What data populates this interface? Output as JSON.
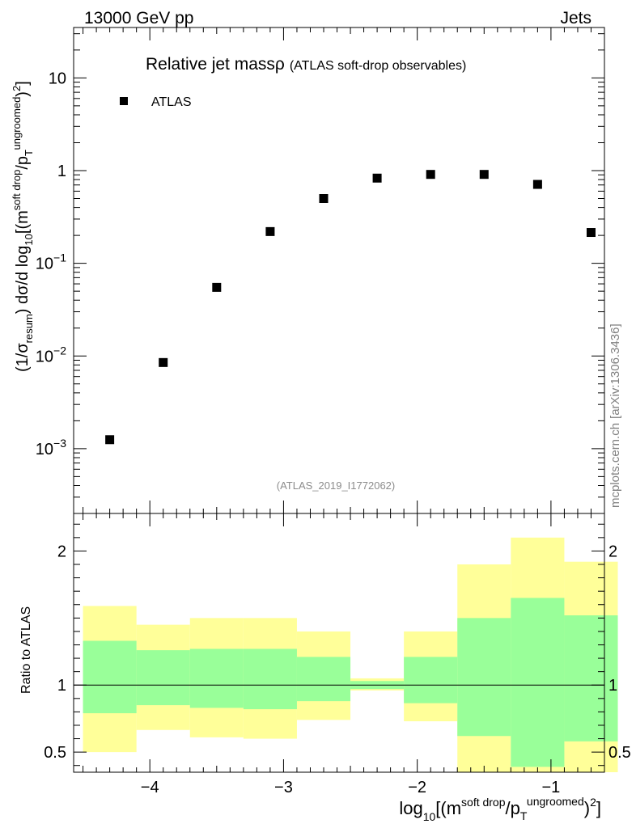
{
  "header": {
    "energy_label": "13000 GeV pp",
    "category_label": "Jets"
  },
  "watermark": {
    "site": "mcplots.cern.ch",
    "ref": "[arXiv:1306.3436]"
  },
  "chart_data": [
    {
      "type": "scatter",
      "panel": "main",
      "title": "Relative jet massρ",
      "subtitle": "(ATLAS soft-drop observables)",
      "analysis_id": "(ATLAS_2019_I1772062)",
      "ylabel": "(1/σresum) dσ/d log10[(msoft drop/pTungroomed)2]",
      "yscale": "log",
      "ylim": [
        0.0002,
        35
      ],
      "xlim": [
        -4.57,
        -0.6
      ],
      "legend_position": "top-left",
      "y_ticks": [
        {
          "v": 0.001,
          "base": "10",
          "exp": "−3"
        },
        {
          "v": 0.01,
          "base": "10",
          "exp": "−2"
        },
        {
          "v": 0.1,
          "base": "10",
          "exp": "−1"
        },
        {
          "v": 1,
          "base": "1",
          "exp": ""
        },
        {
          "v": 10,
          "base": "10",
          "exp": ""
        }
      ],
      "series": [
        {
          "name": "ATLAS",
          "x": [
            -4.3,
            -3.9,
            -3.5,
            -3.1,
            -2.7,
            -2.3,
            -1.9,
            -1.5,
            -1.1,
            -0.7
          ],
          "y": [
            0.00125,
            0.0085,
            0.055,
            0.22,
            0.5,
            0.83,
            0.91,
            0.91,
            0.71,
            0.215
          ]
        }
      ]
    },
    {
      "type": "area",
      "panel": "ratio",
      "ylabel": "Ratio to ATLAS",
      "xlabel": "log10[(msoft drop/pTungroomed)2]",
      "xlim": [
        -4.57,
        -0.6
      ],
      "ylim": [
        0.35,
        2.28
      ],
      "x_ticks": [
        {
          "v": -4,
          "label": "−4"
        },
        {
          "v": -3,
          "label": "−3"
        },
        {
          "v": -2,
          "label": "−2"
        },
        {
          "v": -1,
          "label": "−1"
        }
      ],
      "y_ticks": [
        {
          "v": 0.5,
          "label": "0.5"
        },
        {
          "v": 1,
          "label": "1"
        },
        {
          "v": 2,
          "label": "2"
        }
      ],
      "bin_edges": [
        -4.5,
        -4.1,
        -3.7,
        -3.3,
        -2.9,
        -2.5,
        -2.1,
        -1.7,
        -1.3,
        -0.9,
        -0.5
      ],
      "reference": 1,
      "bands": [
        {
          "name": "outer",
          "color": "#ffff99",
          "low": [
            0.5,
            0.665,
            0.61,
            0.6,
            0.74,
            0.96,
            0.73,
            0.1,
            0.1,
            0.1
          ],
          "high": [
            1.59,
            1.45,
            1.5,
            1.5,
            1.4,
            1.05,
            1.4,
            1.9,
            2.1,
            1.92
          ]
        },
        {
          "name": "inner",
          "color": "#99ff99",
          "low": [
            0.79,
            0.85,
            0.83,
            0.82,
            0.88,
            0.97,
            0.865,
            0.62,
            0.39,
            0.58
          ],
          "high": [
            1.33,
            1.26,
            1.27,
            1.27,
            1.21,
            1.03,
            1.21,
            1.5,
            1.65,
            1.52
          ]
        }
      ]
    }
  ]
}
